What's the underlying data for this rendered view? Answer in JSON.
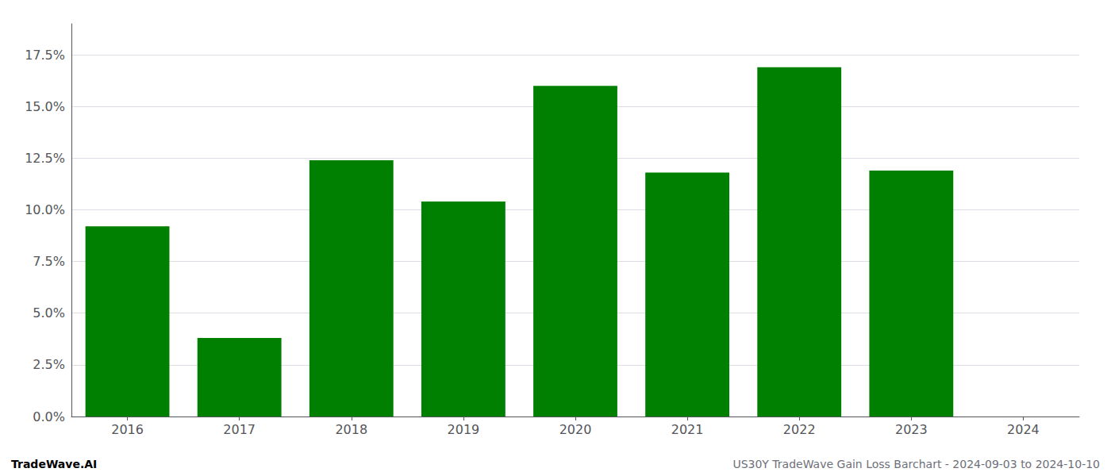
{
  "chart_data": {
    "type": "bar",
    "categories": [
      "2016",
      "2017",
      "2018",
      "2019",
      "2020",
      "2021",
      "2022",
      "2023",
      "2024"
    ],
    "values": [
      0.092,
      0.038,
      0.124,
      0.104,
      0.16,
      0.118,
      0.169,
      0.119,
      null
    ],
    "color": "#008000",
    "ylim": [
      0,
      0.19
    ],
    "yticks": [
      {
        "value": 0.0,
        "label": "0.0%"
      },
      {
        "value": 0.025,
        "label": "2.5%"
      },
      {
        "value": 0.05,
        "label": "5.0%"
      },
      {
        "value": 0.075,
        "label": "7.5%"
      },
      {
        "value": 0.1,
        "label": "10.0%"
      },
      {
        "value": 0.125,
        "label": "12.5%"
      },
      {
        "value": 0.15,
        "label": "15.0%"
      },
      {
        "value": 0.175,
        "label": "17.5%"
      }
    ],
    "grid": true,
    "annotations": [
      "TradeWave.AI",
      "US30Y TradeWave Gain Loss Barchart - 2024-09-03 to 2024-10-10"
    ]
  }
}
